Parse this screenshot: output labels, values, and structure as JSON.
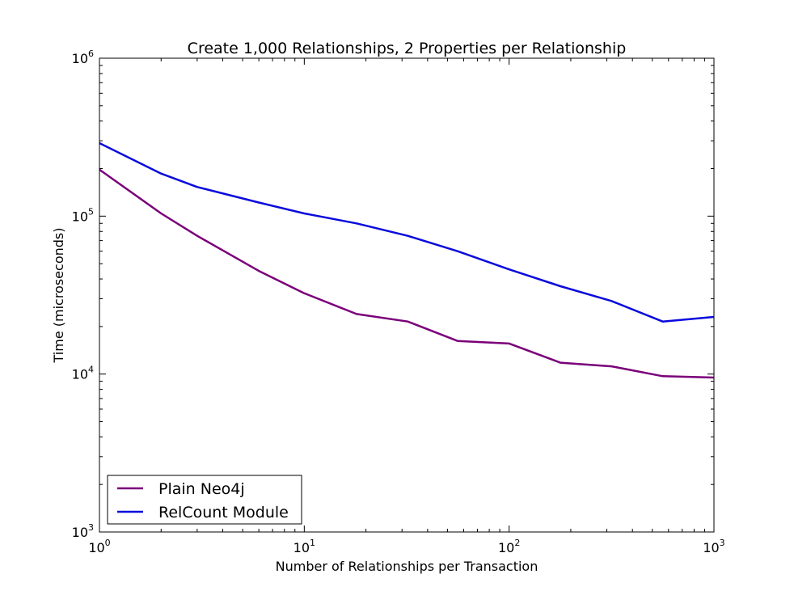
{
  "chart_data": {
    "type": "line",
    "title": "Create 1,000 Relationships, 2 Properties per Relationship",
    "xlabel": "Number of Relationships per Transaction",
    "ylabel": "Time (microseconds)",
    "xscale": "log",
    "yscale": "log",
    "xlim": [
      1,
      1000
    ],
    "ylim": [
      1000,
      1000000
    ],
    "xticks": [
      {
        "value": 1,
        "base": "10",
        "exp": "0"
      },
      {
        "value": 10,
        "base": "10",
        "exp": "1"
      },
      {
        "value": 100,
        "base": "10",
        "exp": "2"
      },
      {
        "value": 1000,
        "base": "10",
        "exp": "3"
      }
    ],
    "yticks": [
      {
        "value": 1000,
        "base": "10",
        "exp": "3"
      },
      {
        "value": 10000,
        "base": "10",
        "exp": "4"
      },
      {
        "value": 100000,
        "base": "10",
        "exp": "5"
      },
      {
        "value": 1000000,
        "base": "10",
        "exp": "6"
      }
    ],
    "grid": false,
    "legend_position": "lower-left",
    "series": [
      {
        "name": "Plain Neo4j",
        "color": "#7a007a",
        "x": [
          1,
          2,
          3,
          6,
          10,
          18,
          32,
          56,
          100,
          178,
          316,
          562,
          1000
        ],
        "y": [
          197000,
          104000,
          75000,
          45000,
          32500,
          24000,
          21500,
          16200,
          15600,
          11800,
          11200,
          9700,
          9500
        ]
      },
      {
        "name": "RelCount Module",
        "color": "#0a0adc",
        "x": [
          1,
          2,
          3,
          6,
          10,
          18,
          32,
          56,
          100,
          178,
          316,
          562,
          1000
        ],
        "y": [
          290000,
          186000,
          153000,
          122000,
          104000,
          90000,
          75000,
          60000,
          46000,
          36000,
          29000,
          21500,
          23000
        ]
      }
    ]
  }
}
